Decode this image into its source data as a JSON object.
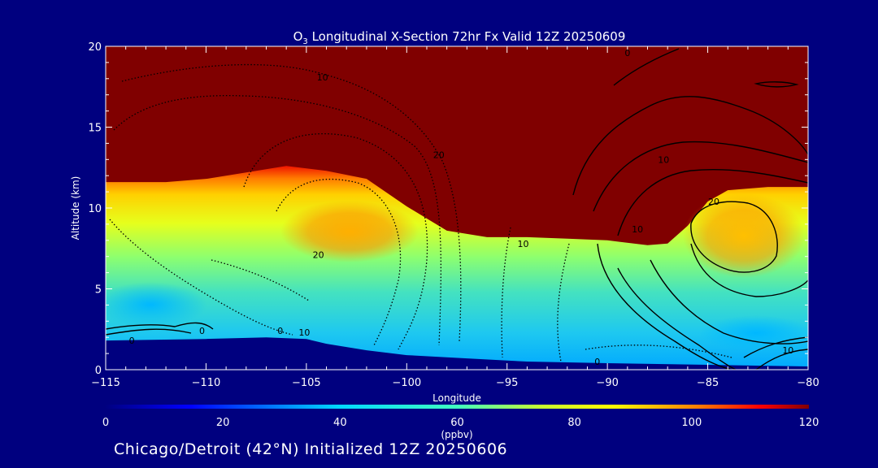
{
  "chart_data": {
    "type": "heatmap",
    "title_species": "O",
    "title_subscript": "3",
    "title_rest": " Longitudinal X-Section 72hr  Fx Valid 12Z 20250609",
    "xlabel": "Longitude",
    "ylabel": "Altitude (km)",
    "xlim": [
      -115,
      -80
    ],
    "ylim": [
      0,
      20
    ],
    "x_ticks": [
      -115,
      -110,
      -105,
      -100,
      -95,
      -90,
      -85,
      -80
    ],
    "x_tick_labels": [
      "−115",
      "−110",
      "−105",
      "−100",
      "−95",
      "−90",
      "−85",
      "−80"
    ],
    "y_ticks": [
      0,
      5,
      10,
      15,
      20
    ],
    "y_tick_labels": [
      "0",
      "5",
      "10",
      "15",
      "20"
    ],
    "colorbar": {
      "label": "(ppbv)",
      "min": 0,
      "max": 120,
      "ticks": [
        0,
        20,
        40,
        60,
        80,
        100,
        120
      ],
      "tick_labels": [
        "0",
        "20",
        "40",
        "60",
        "80",
        "100",
        "120"
      ]
    },
    "tropopause_km": [
      [
        -115,
        11.6
      ],
      [
        -112,
        11.6
      ],
      [
        -110,
        11.8
      ],
      [
        -108,
        12.2
      ],
      [
        -106,
        12.6
      ],
      [
        -104,
        12.3
      ],
      [
        -102,
        11.8
      ],
      [
        -100,
        10.1
      ],
      [
        -98,
        8.6
      ],
      [
        -96,
        8.2
      ],
      [
        -94,
        8.2
      ],
      [
        -92,
        8.1
      ],
      [
        -90,
        8.0
      ],
      [
        -88,
        7.7
      ],
      [
        -87,
        7.8
      ],
      [
        -86,
        8.9
      ],
      [
        -85,
        10.4
      ],
      [
        -84,
        11.1
      ],
      [
        -82,
        11.3
      ],
      [
        -80,
        11.3
      ]
    ],
    "ground_km": [
      [
        -115,
        1.8
      ],
      [
        -110,
        1.9
      ],
      [
        -107,
        2.0
      ],
      [
        -105,
        1.9
      ],
      [
        -104,
        1.6
      ],
      [
        -102,
        1.2
      ],
      [
        -100,
        0.9
      ],
      [
        -97,
        0.7
      ],
      [
        -94,
        0.5
      ],
      [
        -90,
        0.4
      ],
      [
        -85,
        0.3
      ],
      [
        -80,
        0.2
      ]
    ],
    "contour_labels": [
      {
        "text": "10",
        "lon": -104.2,
        "alt": 17.9
      },
      {
        "text": "20",
        "lon": -98.4,
        "alt": 13.1
      },
      {
        "text": "20",
        "lon": -104.4,
        "alt": 6.9
      },
      {
        "text": "10",
        "lon": -94.2,
        "alt": 7.6
      },
      {
        "text": "0",
        "lon": -89.0,
        "alt": 19.4
      },
      {
        "text": "10",
        "lon": -87.2,
        "alt": 12.8
      },
      {
        "text": "20",
        "lon": -84.7,
        "alt": 10.2
      },
      {
        "text": "10",
        "lon": -88.5,
        "alt": 8.5
      },
      {
        "text": "10",
        "lon": -81.0,
        "alt": 1.0
      },
      {
        "text": "0",
        "lon": -90.5,
        "alt": 0.3
      },
      {
        "text": "0",
        "lon": -113.7,
        "alt": 1.6
      },
      {
        "text": "0",
        "lon": -110.2,
        "alt": 2.2
      },
      {
        "text": "0",
        "lon": -106.3,
        "alt": 2.2
      },
      {
        "text": "10",
        "lon": -105.1,
        "alt": 2.1
      }
    ]
  },
  "footer": "Chicago/Detroit (42°N) Initialized 12Z 20250606"
}
